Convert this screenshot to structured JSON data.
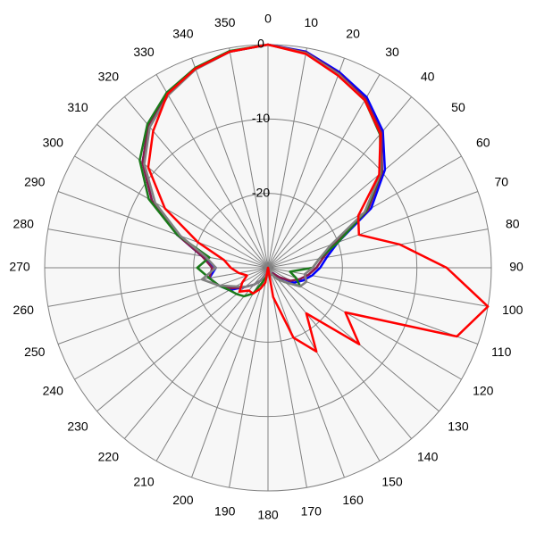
{
  "chart_data": {
    "type": "polar",
    "theta": [
      0,
      10,
      20,
      30,
      40,
      50,
      60,
      70,
      80,
      90,
      100,
      110,
      120,
      130,
      140,
      150,
      160,
      170,
      180,
      190,
      200,
      210,
      220,
      230,
      240,
      250,
      260,
      270,
      280,
      290,
      300,
      310,
      320,
      330,
      340,
      350
    ],
    "rlim": [
      -30,
      0
    ],
    "rticks": [
      -20,
      -10,
      0
    ],
    "grid": true,
    "series": [
      {
        "color": "#0000ff",
        "values": [
          0,
          -0.5,
          -2,
          -3.5,
          -6,
          -9.5,
          -14,
          -20,
          -22,
          -23,
          -24,
          -25,
          -26,
          -28,
          -29,
          -29,
          -29,
          -29,
          -30,
          -29,
          -29,
          -28,
          -27,
          -26,
          -24,
          -23,
          -22,
          -23,
          -21,
          -17,
          -12,
          -8,
          -5,
          -3,
          -1.5,
          -0.5
        ]
      },
      {
        "color": "#8b1a4a",
        "values": [
          0,
          -0.6,
          -2.2,
          -3.8,
          -6.3,
          -10,
          -14.5,
          -20.5,
          -22.5,
          -23.5,
          -24.5,
          -25.5,
          -26.5,
          -28,
          -29,
          -29,
          -29,
          -29,
          -30,
          -29,
          -29,
          -28,
          -27,
          -26,
          -24.5,
          -23,
          -22,
          -22.5,
          -21,
          -17,
          -12,
          -8,
          -5,
          -3,
          -1.6,
          -0.5
        ]
      },
      {
        "color": "#1a7a1a",
        "values": [
          0,
          -0.7,
          -2.4,
          -4,
          -6.6,
          -10.2,
          -14.8,
          -20,
          -23,
          -24,
          -27,
          -26,
          -25,
          -27,
          -28,
          -29,
          -29,
          -29,
          -30,
          -29,
          -28,
          -26,
          -25,
          -24.5,
          -24,
          -23,
          -22,
          -20.5,
          -22,
          -17,
          -11.5,
          -7.5,
          -4.8,
          -2.8,
          -1.4,
          -0.4
        ]
      },
      {
        "color": "#808080",
        "values": [
          0,
          -0.7,
          -2.3,
          -4,
          -6.5,
          -10.3,
          -15,
          -21,
          -23,
          -24,
          -25,
          -24.5,
          -25,
          -27,
          -28,
          -29,
          -29,
          -29,
          -30,
          -29,
          -29,
          -28,
          -27,
          -26,
          -25,
          -23,
          -21,
          -23,
          -21.5,
          -17.5,
          -12.5,
          -8.3,
          -5.3,
          -3.2,
          -1.6,
          -0.5
        ]
      },
      {
        "color": "#ff0000",
        "values": [
          0,
          -0.8,
          -2.5,
          -4,
          -6.5,
          -10.5,
          -16,
          -17,
          -12,
          -6,
          0,
          -3,
          -18,
          -14,
          -22,
          -17,
          -20,
          -26,
          -30,
          -28,
          -27,
          -26,
          -26,
          -25,
          -26,
          -27,
          -26,
          -25,
          -24,
          -20,
          -14,
          -9,
          -6,
          -3,
          -1.5,
          -0.5
        ]
      }
    ]
  }
}
